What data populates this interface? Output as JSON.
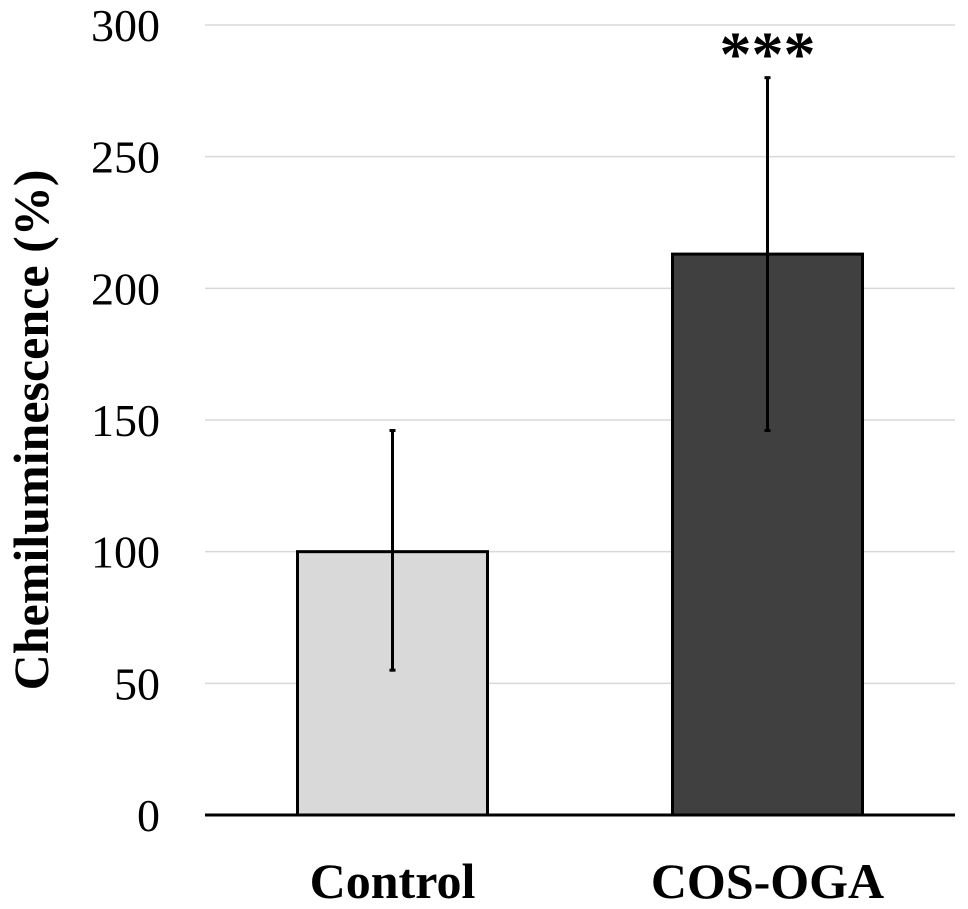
{
  "chart_data": {
    "type": "bar",
    "title": "",
    "xlabel": "",
    "ylabel": "Chemiluminescence (%)",
    "ylim": [
      0,
      300
    ],
    "yticks": [
      0,
      50,
      100,
      150,
      200,
      250,
      300
    ],
    "ytick_labels": [
      "0",
      "50",
      "100",
      "150",
      "200",
      "250",
      "300"
    ],
    "grid": true,
    "categories": [
      "Control",
      "COS-OGA"
    ],
    "values": [
      100,
      213
    ],
    "error_low": [
      55,
      146
    ],
    "error_high": [
      146,
      280
    ],
    "annotations": [
      "",
      "***"
    ],
    "bar_colors": [
      "#d9d9d9",
      "#404040"
    ]
  }
}
